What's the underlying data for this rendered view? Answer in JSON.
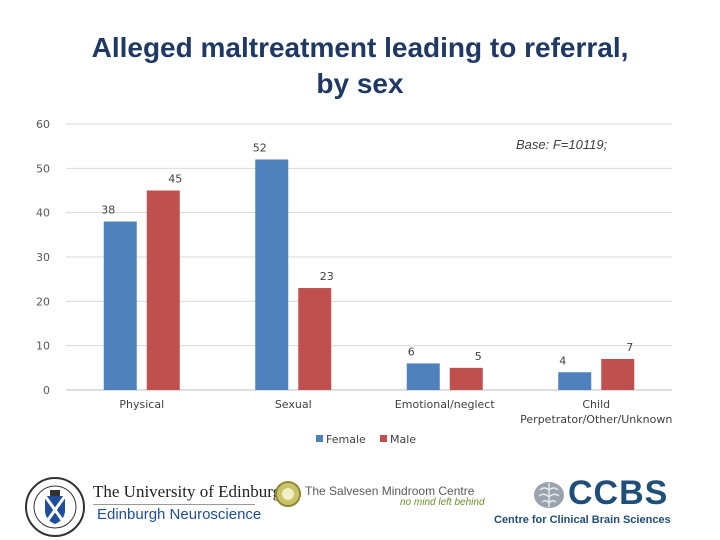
{
  "title_lines": [
    "Alleged maltreatment leading to referral,",
    "by sex"
  ],
  "base_note": "Base: F=10119;",
  "chart_data": {
    "type": "bar",
    "categories": [
      [
        "Physical"
      ],
      [
        "Sexual"
      ],
      [
        "Emotional/neglect"
      ],
      [
        "Child",
        "Perpetrator/Other/Unknown"
      ]
    ],
    "series": [
      {
        "name": "Female",
        "color": "#4f81bd",
        "values": [
          38,
          52,
          6,
          4
        ]
      },
      {
        "name": "Male",
        "color": "#c0504d",
        "values": [
          45,
          23,
          5,
          7
        ]
      }
    ],
    "ylim": [
      0,
      60
    ],
    "yticks": [
      0,
      10,
      20,
      30,
      40,
      50,
      60
    ],
    "grid": true,
    "legend": "bottom"
  },
  "logos": {
    "edinburgh_name": "The University of Edinburgh",
    "edinburgh_sub": "Edinburgh Neuroscience",
    "mindroom_name": "The Salvesen Mindroom Centre",
    "mindroom_tag": "no mind left behind",
    "ccbs_name": "CCBS",
    "ccbs_sub": "Centre for Clinical Brain Sciences"
  }
}
